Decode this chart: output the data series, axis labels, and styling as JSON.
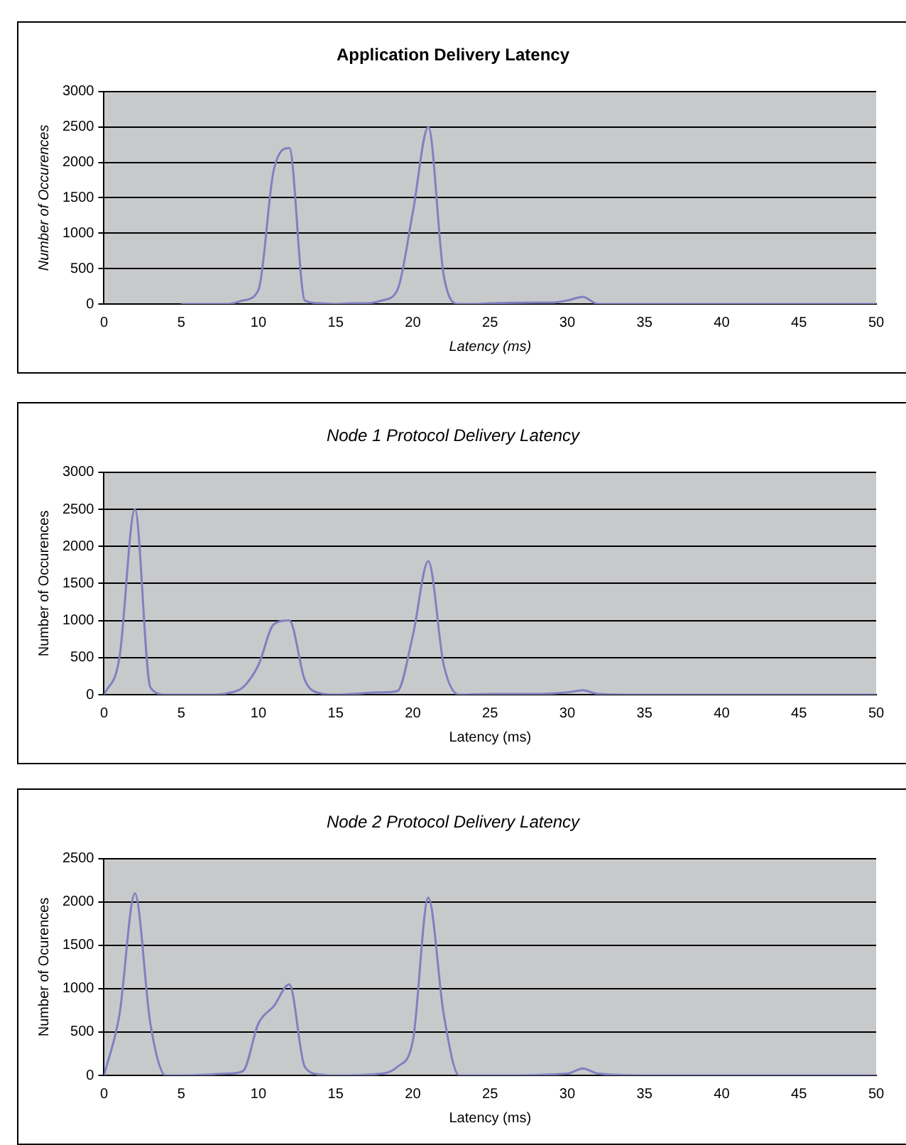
{
  "chart_data": [
    {
      "type": "line",
      "title": "Application Delivery Latency",
      "xlabel": "Latency (ms)",
      "ylabel": "Number of Occurences",
      "xlim": [
        0,
        50
      ],
      "xticks": [
        0,
        5,
        10,
        15,
        20,
        25,
        30,
        35,
        40,
        45,
        50
      ],
      "ylim": [
        0,
        3000
      ],
      "yticks": [
        0,
        500,
        1000,
        1500,
        2000,
        2500,
        3000
      ],
      "grid": "y",
      "legend": false,
      "marker": "none",
      "series": [
        {
          "color": "#8080c0",
          "x": [
            5,
            8,
            9,
            10,
            11,
            12,
            13,
            14,
            15,
            16,
            17,
            18,
            19,
            20,
            21,
            22,
            23,
            24,
            25,
            28,
            29,
            30,
            31,
            32,
            35,
            40,
            45,
            50
          ],
          "values": [
            0,
            0,
            50,
            200,
            1900,
            2200,
            50,
            10,
            0,
            10,
            10,
            50,
            200,
            1300,
            2500,
            400,
            0,
            0,
            10,
            20,
            20,
            50,
            100,
            0,
            0,
            0,
            0,
            0
          ]
        }
      ]
    },
    {
      "type": "line",
      "title": "Node 1 Protocol Delivery Latency",
      "xlabel": "Latency (ms)",
      "ylabel": "Number of Occurences",
      "xlim": [
        0,
        50
      ],
      "xticks": [
        0,
        5,
        10,
        15,
        20,
        25,
        30,
        35,
        40,
        45,
        50
      ],
      "ylim": [
        0,
        3000
      ],
      "yticks": [
        0,
        500,
        1000,
        1500,
        2000,
        2500,
        3000
      ],
      "grid": "y",
      "legend": false,
      "marker": "none",
      "series": [
        {
          "color": "#8080c0",
          "x": [
            0,
            1,
            2,
            3,
            4,
            5,
            7,
            8,
            9,
            10,
            11,
            12,
            13,
            14,
            15,
            16,
            18,
            19,
            20,
            21,
            22,
            23,
            25,
            28,
            30,
            31,
            32,
            35,
            40,
            45,
            50
          ],
          "values": [
            0,
            500,
            2500,
            100,
            0,
            0,
            0,
            20,
            100,
            400,
            950,
            1000,
            200,
            20,
            0,
            10,
            30,
            50,
            800,
            1800,
            400,
            0,
            10,
            10,
            30,
            60,
            10,
            0,
            0,
            0,
            0
          ]
        }
      ]
    },
    {
      "type": "line",
      "title": "Node 2 Protocol Delivery Latency",
      "xlabel": "Latency (ms)",
      "ylabel": "Number of Ocurences",
      "xlim": [
        0,
        50
      ],
      "xticks": [
        0,
        5,
        10,
        15,
        20,
        25,
        30,
        35,
        40,
        45,
        50
      ],
      "ylim": [
        0,
        2500
      ],
      "yticks": [
        0,
        500,
        1000,
        1500,
        2000,
        2500
      ],
      "grid": "y",
      "legend": false,
      "marker": "none",
      "series": [
        {
          "color": "#8080c0",
          "x": [
            0,
            1,
            2,
            3,
            4,
            5,
            8,
            9,
            10,
            11,
            12,
            13,
            14,
            15,
            18,
            19,
            20,
            21,
            22,
            23,
            25,
            30,
            31,
            32,
            35,
            50
          ],
          "values": [
            0,
            700,
            2100,
            600,
            0,
            0,
            20,
            50,
            600,
            800,
            1050,
            100,
            10,
            0,
            20,
            100,
            400,
            2050,
            700,
            0,
            0,
            20,
            80,
            20,
            0,
            0
          ]
        }
      ]
    }
  ]
}
